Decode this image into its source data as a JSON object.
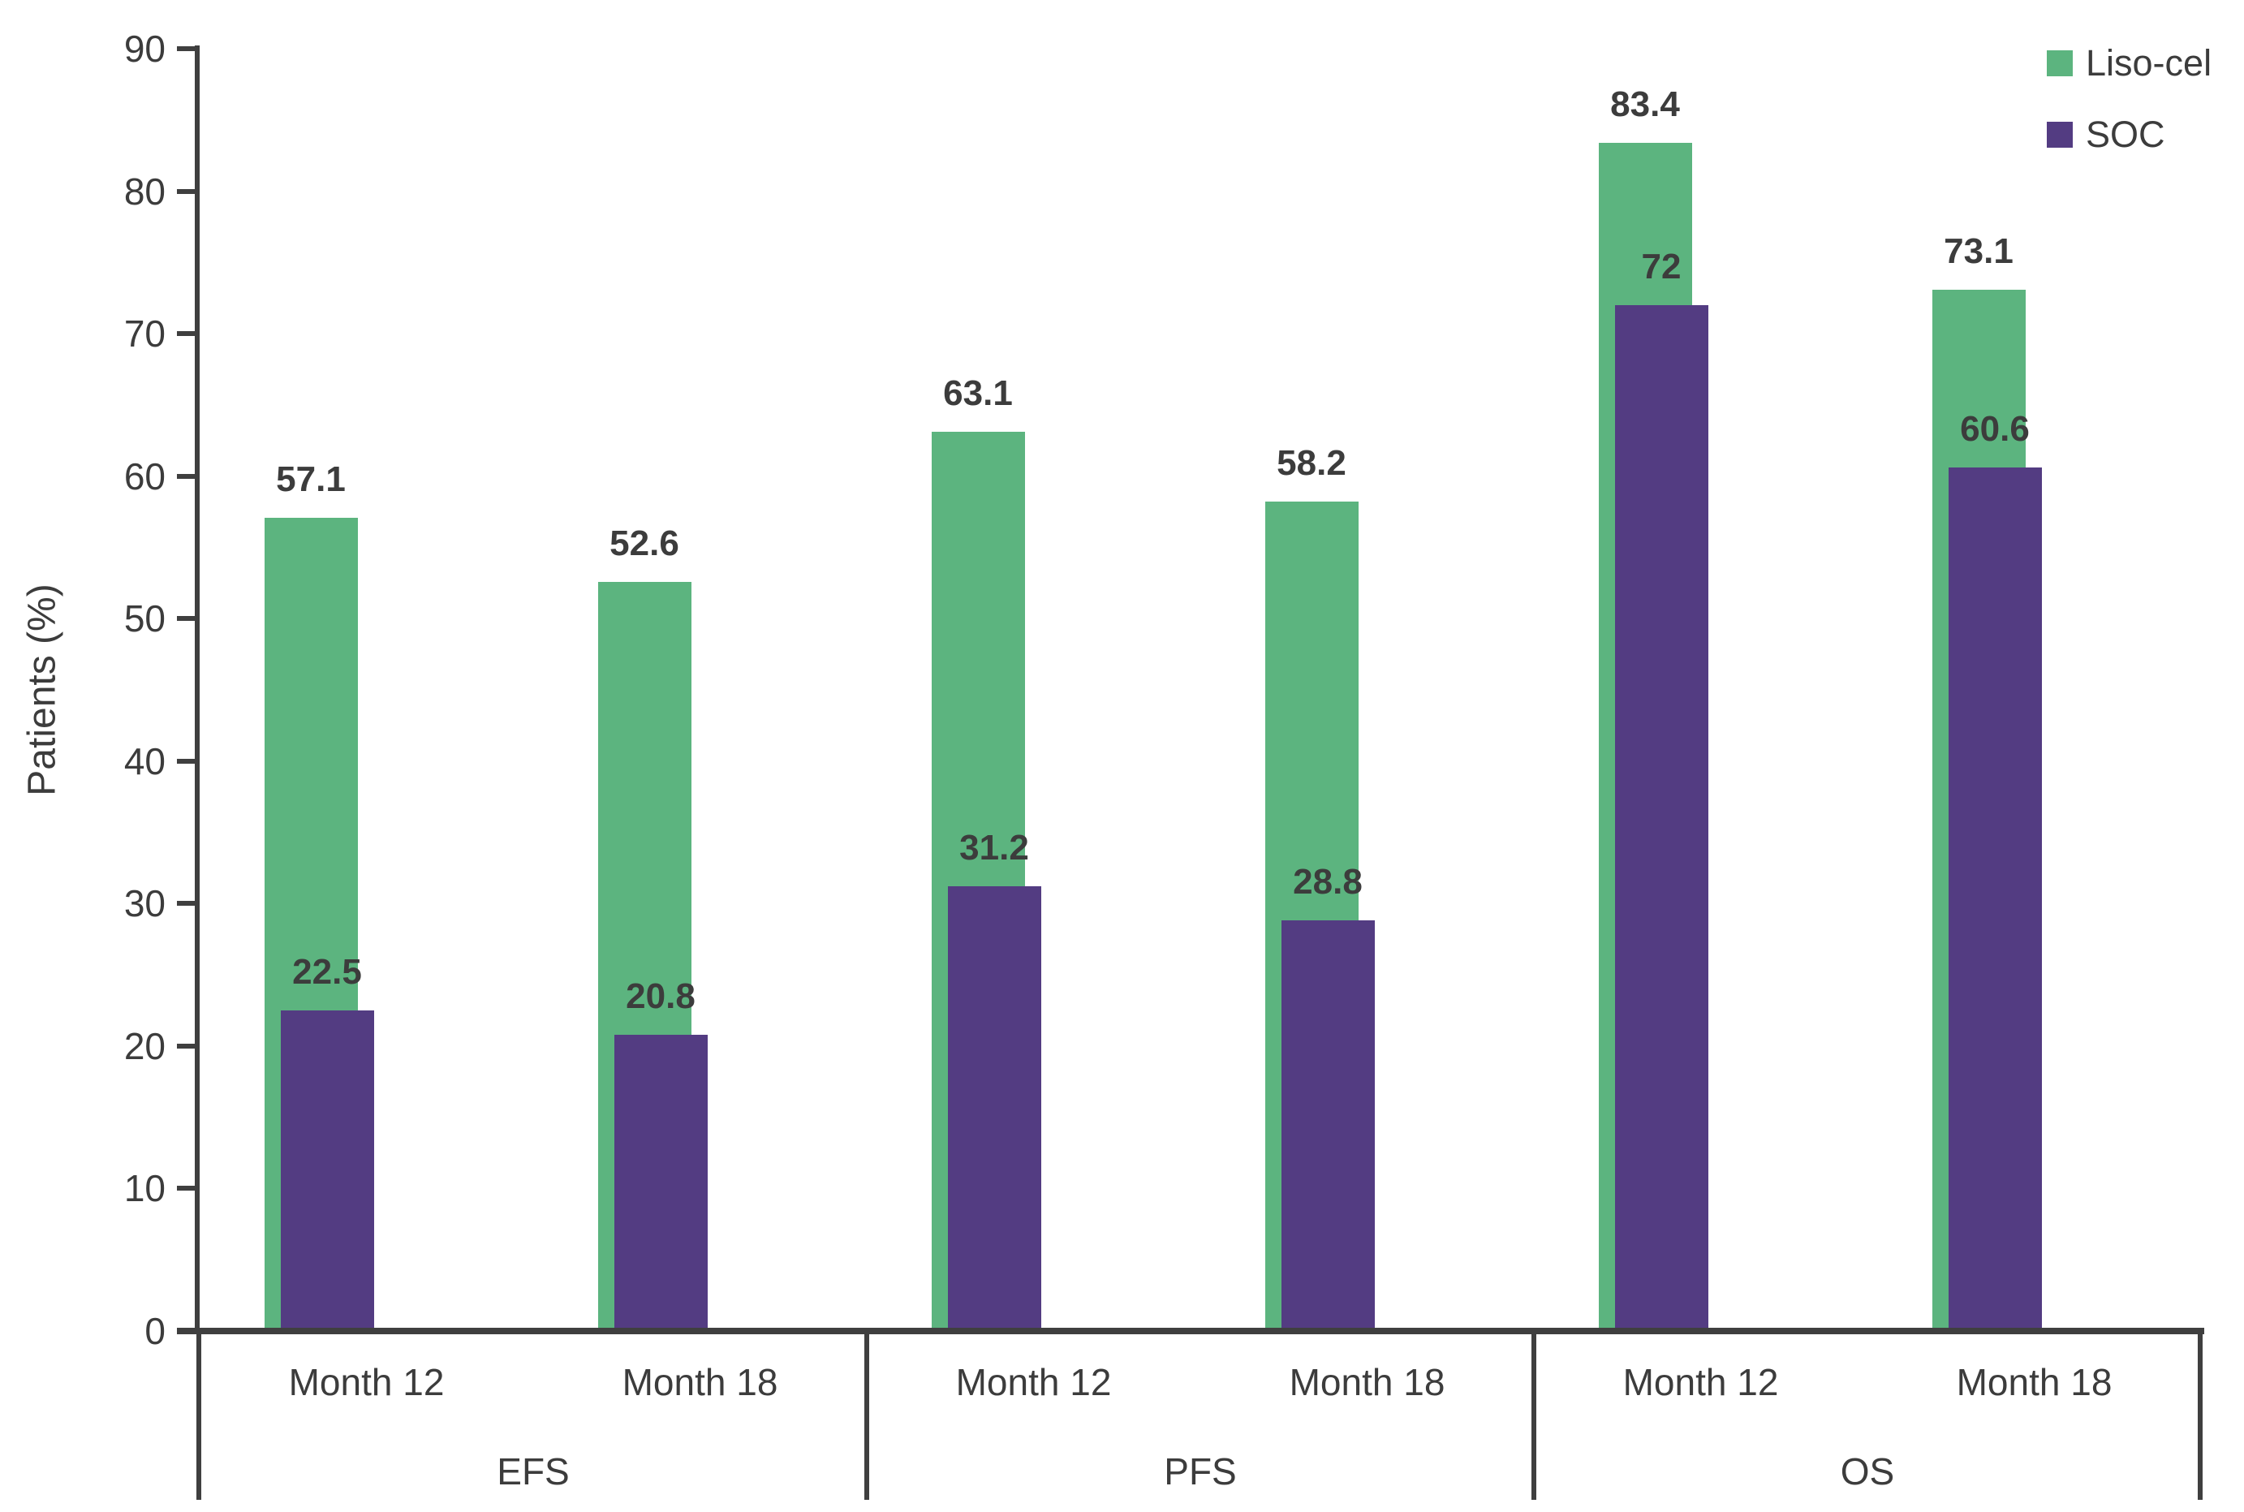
{
  "chart_data": {
    "type": "bar",
    "title": "",
    "ylabel": "Patients (%)",
    "xlabel": "",
    "ylim": [
      0,
      90
    ],
    "ytick_interval": 10,
    "yticks": [
      0,
      10,
      20,
      30,
      40,
      50,
      60,
      70,
      80,
      90
    ],
    "grid": false,
    "legend_position": "top-right",
    "axis_color": "#3f3f3f",
    "text_color": "#3c3c3c",
    "groups": [
      {
        "label": "EFS",
        "categories": [
          "Month 12",
          "Month 18"
        ]
      },
      {
        "label": "PFS",
        "categories": [
          "Month 12",
          "Month 18"
        ]
      },
      {
        "label": "OS",
        "categories": [
          "Month 12",
          "Month 18"
        ]
      }
    ],
    "series": [
      {
        "name": "Liso-cel",
        "color": "#5cb47f",
        "values": [
          [
            57.1,
            52.6
          ],
          [
            63.1,
            58.2
          ],
          [
            83.4,
            73.1
          ]
        ]
      },
      {
        "name": "SOC",
        "color": "#533c82",
        "values": [
          [
            22.5,
            20.8
          ],
          [
            31.2,
            28.8
          ],
          [
            72,
            60.6
          ]
        ]
      }
    ]
  }
}
